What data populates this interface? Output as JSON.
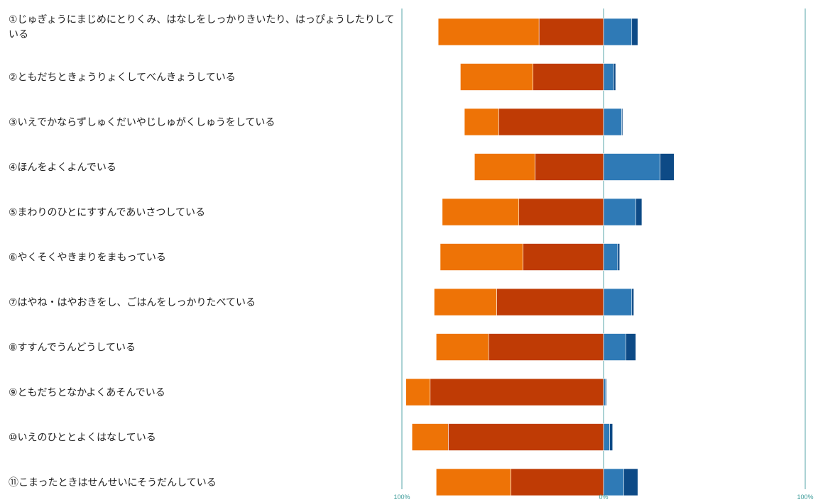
{
  "chart_data": {
    "type": "bar",
    "stacked": true,
    "orientation": "horizontal",
    "diverging": true,
    "categories": [
      "①じゅぎょうにまじめにとりくみ、はなしをしっかりきいたり、はっぴょうしたりしている",
      "②ともだちときょうりょくしてべんきょうしている",
      "③いえでかならずしゅくだいやじしゅがくしゅうをしている",
      "④ほんをよくよんでいる",
      "⑤まわりのひとにすすんであいさつしている",
      "⑥やくそくやきまりをまもっている",
      "⑦はやね・はやおきをし、ごはんをしっかりたべている",
      "⑧すすんでうんどうしている",
      "⑨ともだちとなかよくあそんでいる",
      "⑩いえのひととよくはなしている",
      "⑪こまったときはせんせいにそうだんしている"
    ],
    "categories_lines": [
      [
        "①じゅぎょうにまじめにとりくみ、はなしをしっかりきいたり、はっぴょうしたりして",
        "いる"
      ],
      [
        "②ともだちときょうりょくしてべんきょうしている"
      ],
      [
        "③いえでかならずしゅくだいやじしゅがくしゅうをしている"
      ],
      [
        "④ほんをよくよんでいる"
      ],
      [
        "⑤まわりのひとにすすんであいさつしている"
      ],
      [
        "⑥やくそくやきまりをまもっている"
      ],
      [
        "⑦はやね・はやおきをし、ごはんをしっかりたべている"
      ],
      [
        "⑧すすんでうんどうしている"
      ],
      [
        "⑨ともだちとなかよくあそんでいる"
      ],
      [
        "⑩いえのひととよくはなしている"
      ],
      [
        "⑪こまったときはせんせいにそうだんしている"
      ]
    ],
    "series": [
      {
        "side": "negative",
        "color": "#bf3b05",
        "values": [
          32,
          35,
          52,
          34,
          42,
          40,
          53,
          57,
          86,
          77,
          46
        ]
      },
      {
        "side": "negative",
        "color": "#ee7306",
        "values": [
          50,
          36,
          17,
          30,
          38,
          41,
          31,
          26,
          12,
          18,
          37
        ]
      },
      {
        "side": "positive",
        "color": "#2f7ab6",
        "values": [
          14,
          5,
          9,
          28,
          16,
          7,
          14,
          11,
          1,
          3,
          10
        ]
      },
      {
        "side": "positive",
        "color": "#0d4a86",
        "values": [
          3,
          1,
          0.5,
          7,
          3,
          1,
          1,
          5,
          0.5,
          1.5,
          7
        ]
      }
    ],
    "xlim": [
      -100,
      100
    ],
    "x_ticks": [
      "100%",
      "0%",
      "100%"
    ],
    "grid": false,
    "colors": {
      "axis": "#8fc3c6",
      "tick_label": "#3a9a98",
      "label_text": "#222222"
    }
  }
}
